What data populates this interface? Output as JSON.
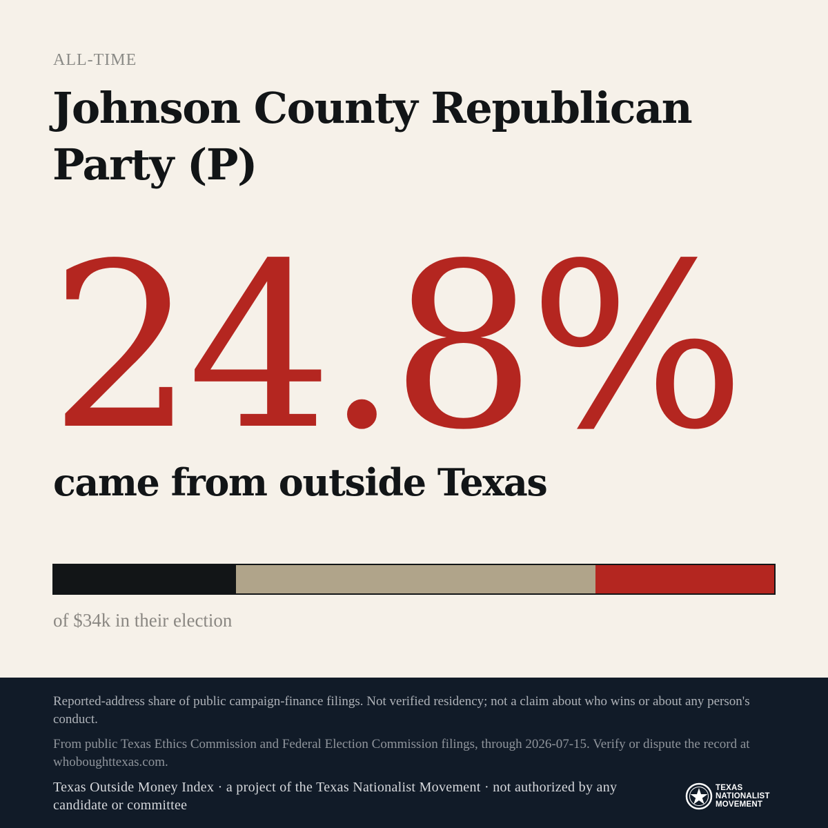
{
  "header": {
    "eyebrow": "ALL-TIME",
    "title": "Johnson County Republican Party (P)"
  },
  "stat": {
    "value": "24.8%",
    "caption": "came from outside Texas"
  },
  "bar": {
    "segments": [
      {
        "name": "segment-1",
        "fraction": 0.253,
        "color": "#121517"
      },
      {
        "name": "segment-2",
        "fraction": 0.499,
        "color": "#b0a48a"
      },
      {
        "name": "segment-3",
        "fraction": 0.248,
        "color": "#b42620"
      }
    ],
    "caption": "of $34k in their election"
  },
  "footer": {
    "disclaimer": "Reported-address share of public campaign-finance filings. Not verified residency; not a claim about who wins or about any person's conduct.",
    "source": "From public Texas Ethics Commission and Federal Election Commission filings, through 2026-07-15. Verify or dispute the record at whoboughttexas.com.",
    "credit": "Texas Outside Money Index · a project of the Texas Nationalist Movement · not authorized by any candidate or committee",
    "logo": {
      "icon": "star-seal-icon",
      "line1": "TEXAS",
      "line2": "NATIONALIST",
      "line3": "MOVEMENT"
    }
  }
}
